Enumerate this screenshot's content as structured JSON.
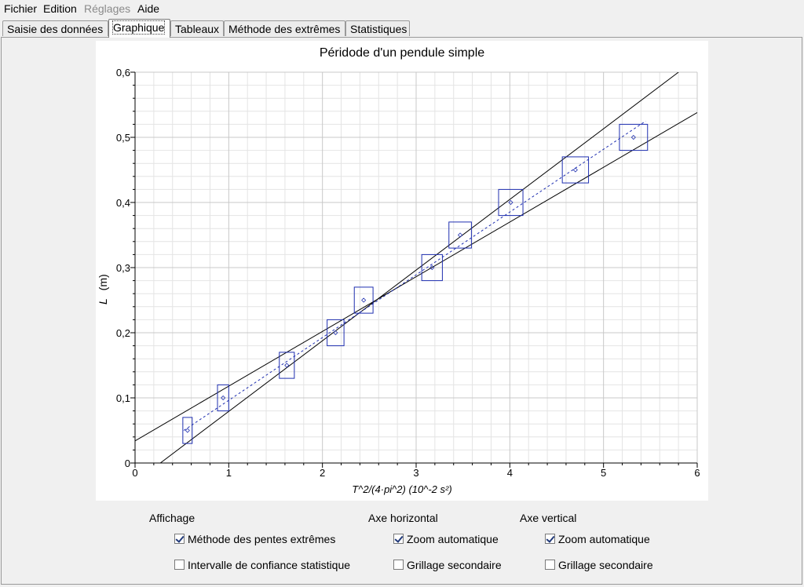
{
  "menu": [
    {
      "label": "Fichier",
      "enabled": true
    },
    {
      "label": "Edition",
      "enabled": true
    },
    {
      "label": "Réglages",
      "enabled": false
    },
    {
      "label": "Aide",
      "enabled": true
    }
  ],
  "tabs": [
    {
      "label": "Saisie des données",
      "active": false
    },
    {
      "label": "Graphique",
      "active": true
    },
    {
      "label": "Tableaux",
      "active": false
    },
    {
      "label": "Méthode des extrêmes",
      "active": false
    },
    {
      "label": "Statistiques",
      "active": false
    }
  ],
  "chart_data": {
    "type": "scatter",
    "title": "Péridode d'un pendule simple",
    "xlabel": "T^2/(4·pi^2)  (10^-2  s²)",
    "ylabel_var": "L",
    "ylabel_unit": "(m)",
    "xlim": [
      0,
      6
    ],
    "ylim": [
      0,
      0.6
    ],
    "x_ticks": [
      "0",
      "1",
      "2",
      "3",
      "4",
      "5",
      "6"
    ],
    "y_ticks": [
      "0",
      "0,1",
      "0,2",
      "0,3",
      "0,4",
      "0,5",
      "0,6"
    ],
    "grid": true,
    "minor_grid": true,
    "points": [
      {
        "x": 0.56,
        "y": 0.05,
        "dx": 0.05,
        "dy": 0.02
      },
      {
        "x": 0.94,
        "y": 0.1,
        "dx": 0.06,
        "dy": 0.02
      },
      {
        "x": 1.62,
        "y": 0.15,
        "dx": 0.08,
        "dy": 0.02
      },
      {
        "x": 2.14,
        "y": 0.2,
        "dx": 0.09,
        "dy": 0.02
      },
      {
        "x": 2.44,
        "y": 0.25,
        "dx": 0.1,
        "dy": 0.02
      },
      {
        "x": 3.17,
        "y": 0.3,
        "dx": 0.11,
        "dy": 0.02
      },
      {
        "x": 3.47,
        "y": 0.35,
        "dx": 0.12,
        "dy": 0.02
      },
      {
        "x": 4.01,
        "y": 0.4,
        "dx": 0.13,
        "dy": 0.02
      },
      {
        "x": 4.7,
        "y": 0.45,
        "dx": 0.14,
        "dy": 0.02
      },
      {
        "x": 5.32,
        "y": 0.5,
        "dx": 0.15,
        "dy": 0.02
      }
    ],
    "fit_line": {
      "x1": 0.52,
      "y1": 0.05,
      "x2": 5.45,
      "y2": 0.525,
      "style": "dashed"
    },
    "extreme_lines": [
      {
        "x1": 0.27,
        "y1": 0.0,
        "x2": 5.8,
        "y2": 0.6
      },
      {
        "x1": 0.0,
        "y1": 0.034,
        "x2": 6.0,
        "y2": 0.538
      }
    ]
  },
  "options": {
    "display": {
      "header": "Affichage",
      "slopes": {
        "label": "Méthode des pentes extrêmes",
        "checked": true
      },
      "confidence": {
        "label": "Intervalle de confiance statistique",
        "checked": false
      }
    },
    "x_axis": {
      "header": "Axe horizontal",
      "zoom": {
        "label": "Zoom automatique",
        "checked": true
      },
      "grid": {
        "label": "Grillage secondaire",
        "checked": false
      }
    },
    "y_axis": {
      "header": "Axe vertical",
      "zoom": {
        "label": "Zoom automatique",
        "checked": true
      },
      "grid": {
        "label": "Grillage secondaire",
        "checked": false
      }
    }
  },
  "colors": {
    "points": "#1f2fb0",
    "lines": "#000000",
    "grid_major": "#c8c8c8",
    "grid_minor": "#e4e4e4"
  }
}
